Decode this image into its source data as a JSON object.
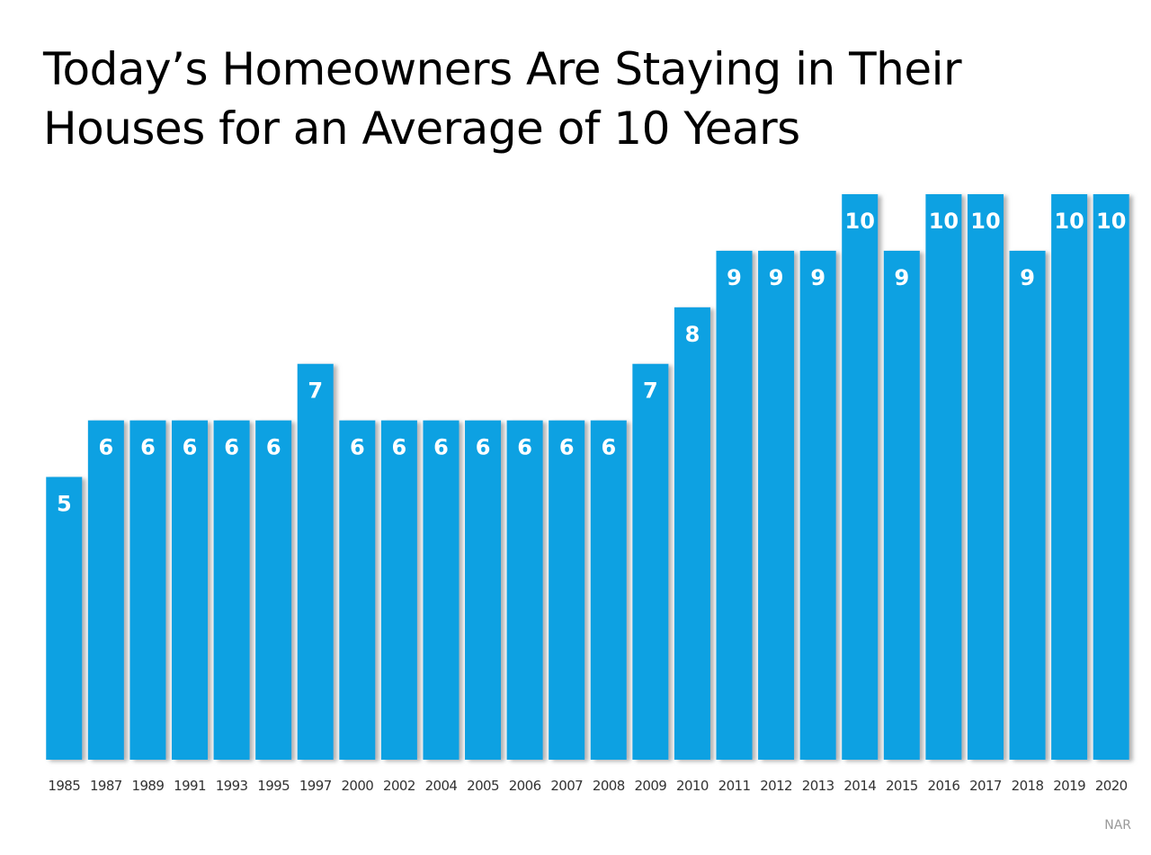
{
  "title": {
    "line1": "Today’s Homeowners Are Staying in Their",
    "line2": "Houses for an Average of 10 Years"
  },
  "source": "NAR",
  "colors": {
    "bar": "#0aa1e2",
    "bar_shadow": "#9a9a9a",
    "label": "#ffffff"
  },
  "chart_data": {
    "type": "bar",
    "title": "Today’s Homeowners Are Staying in Their Houses for an Average of 10 Years",
    "xlabel": "",
    "ylabel": "",
    "categories": [
      "1985",
      "1987",
      "1989",
      "1991",
      "1993",
      "1995",
      "1997",
      "2000",
      "2002",
      "2004",
      "2005",
      "2006",
      "2007",
      "2008",
      "2009",
      "2010",
      "2011",
      "2012",
      "2013",
      "2014",
      "2015",
      "2016",
      "2017",
      "2018",
      "2019",
      "2020"
    ],
    "values": [
      5,
      6,
      6,
      6,
      6,
      6,
      7,
      6,
      6,
      6,
      6,
      6,
      6,
      6,
      7,
      8,
      9,
      9,
      9,
      10,
      9,
      10,
      10,
      9,
      10,
      10
    ],
    "data_labels": [
      "5",
      "6",
      "6",
      "6",
      "6",
      "6",
      "7",
      "6",
      "6",
      "6",
      "6",
      "6",
      "6",
      "6",
      "7",
      "8",
      "9",
      "9",
      "9",
      "10",
      "9",
      "10",
      "10",
      "9",
      "10",
      "10"
    ],
    "ylim": [
      0,
      10
    ],
    "grid": false,
    "legend": "none"
  }
}
